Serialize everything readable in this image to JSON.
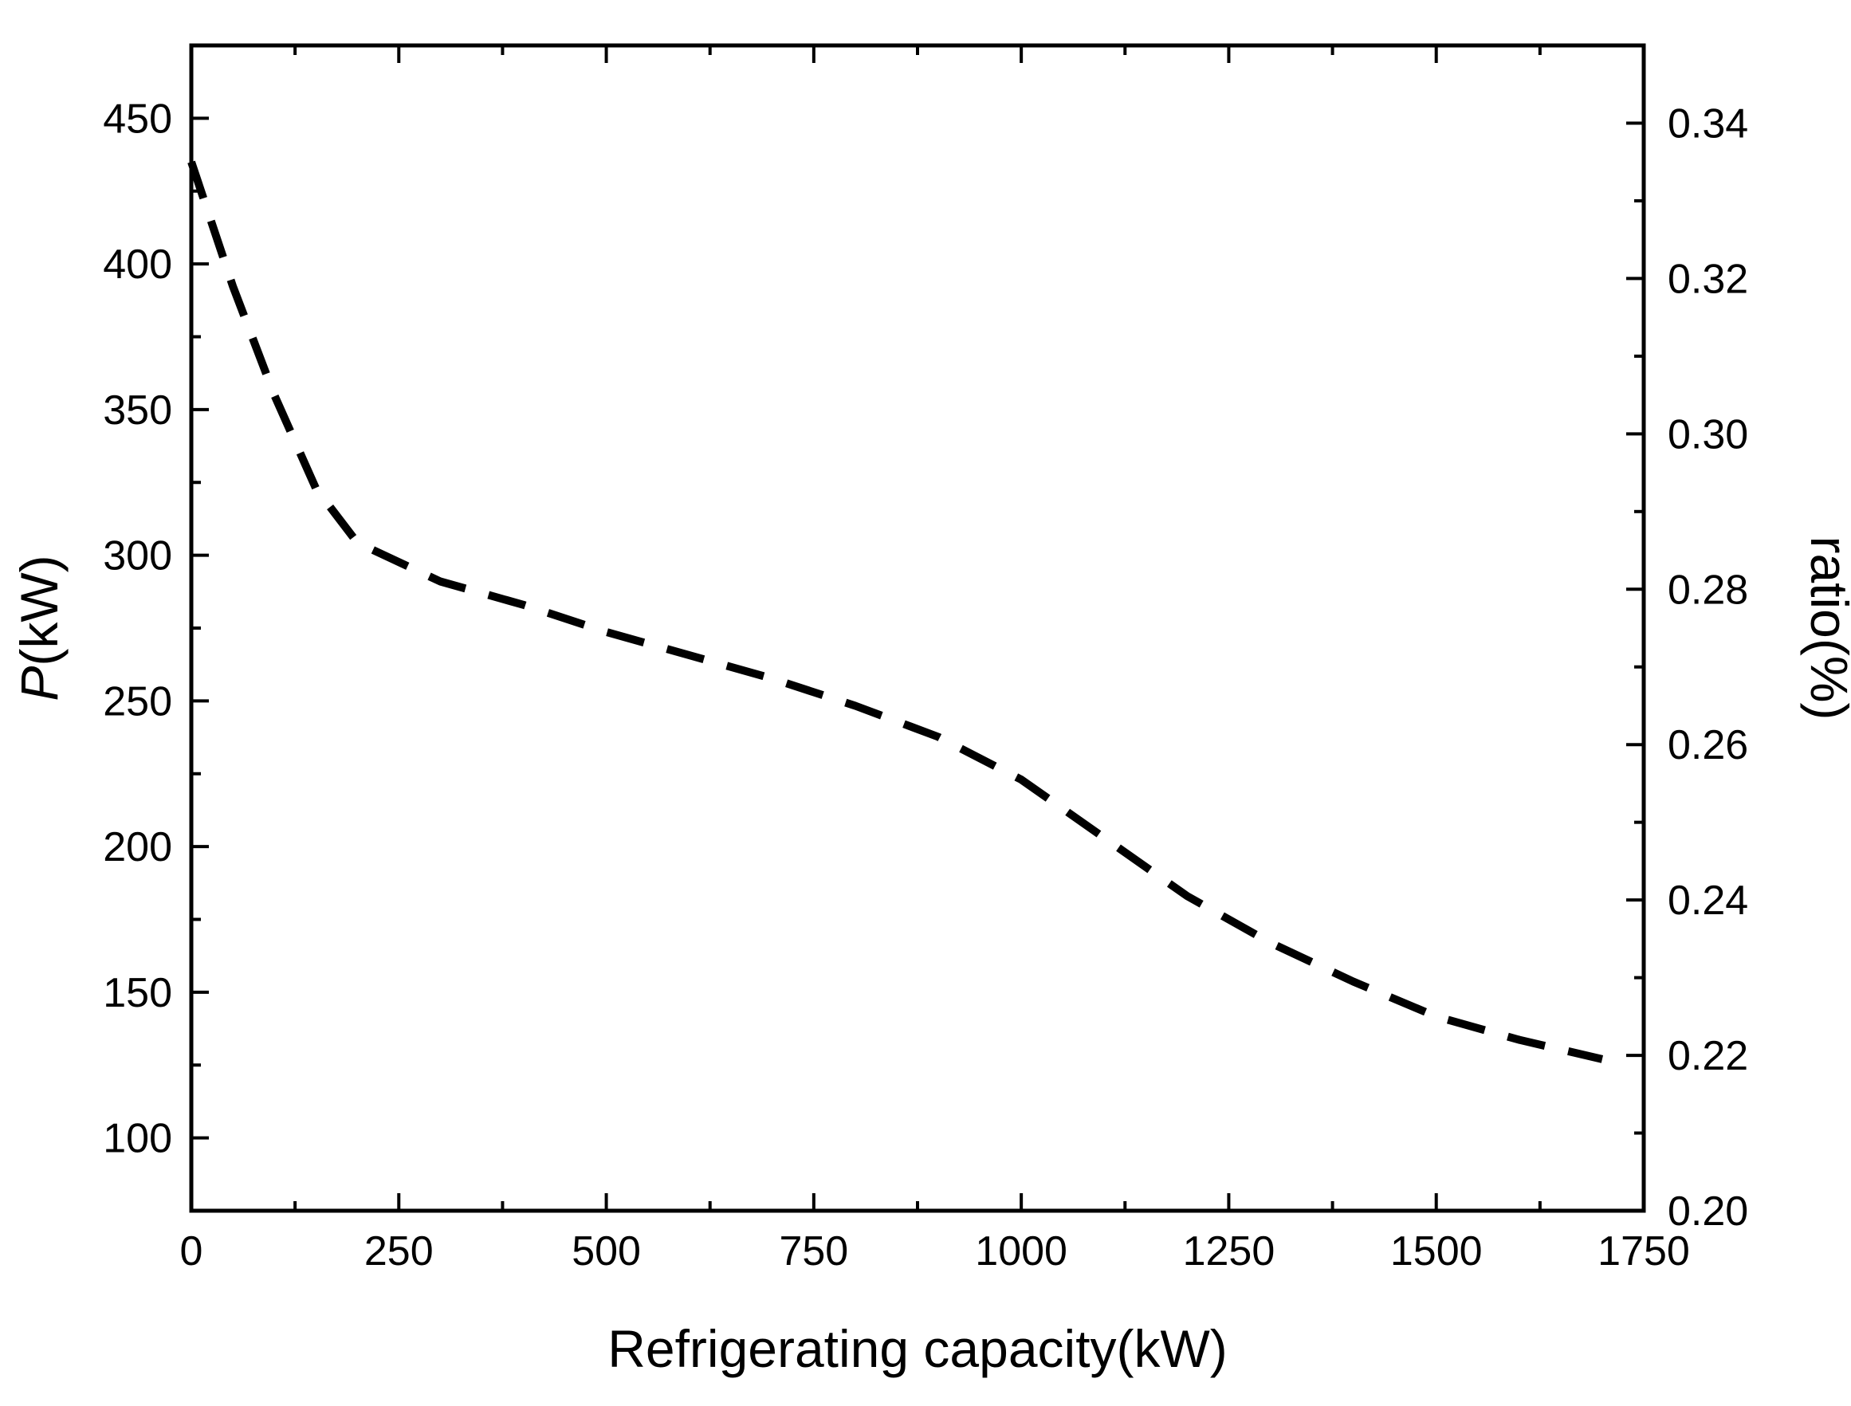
{
  "chart_data": {
    "type": "line",
    "title": "",
    "xlabel": "Refrigerating capacity(kW)",
    "ylabel_italic": "P",
    "ylabel_rest": "(kW)",
    "y2label": "ratio(%)",
    "xlim": [
      0,
      1750
    ],
    "ylim": [
      75,
      475
    ],
    "y2lim": [
      0.2,
      0.35
    ],
    "xticks": [
      0,
      250,
      500,
      750,
      1000,
      1250,
      1500,
      1750
    ],
    "xtick_labels": [
      "0",
      "250",
      "500",
      "750",
      "1000",
      "1250",
      "1500",
      "1750"
    ],
    "yticks": [
      100,
      150,
      200,
      250,
      300,
      350,
      400,
      450
    ],
    "ytick_labels": [
      "100",
      "150",
      "200",
      "250",
      "300",
      "350",
      "400",
      "450"
    ],
    "y2ticks": [
      0.2,
      0.22,
      0.24,
      0.26,
      0.28,
      0.3,
      0.32,
      0.34
    ],
    "y2tick_labels": [
      "0.20",
      "0.22",
      "0.24",
      "0.26",
      "0.28",
      "0.30",
      "0.32",
      "0.34"
    ],
    "grid": false,
    "series": [
      {
        "name": "ratio",
        "axis": "right",
        "style": "dashed",
        "color": "#000000",
        "x": [
          0,
          50,
          100,
          150,
          200,
          300,
          400,
          500,
          600,
          700,
          800,
          900,
          1000,
          1100,
          1200,
          1300,
          1400,
          1500,
          1600,
          1700
        ],
        "values": [
          0.335,
          0.319,
          0.305,
          0.293,
          0.286,
          0.281,
          0.278,
          0.2745,
          0.2715,
          0.2685,
          0.265,
          0.261,
          0.2555,
          0.248,
          0.2405,
          0.2345,
          0.2295,
          0.225,
          0.222,
          0.2195
        ]
      }
    ]
  }
}
